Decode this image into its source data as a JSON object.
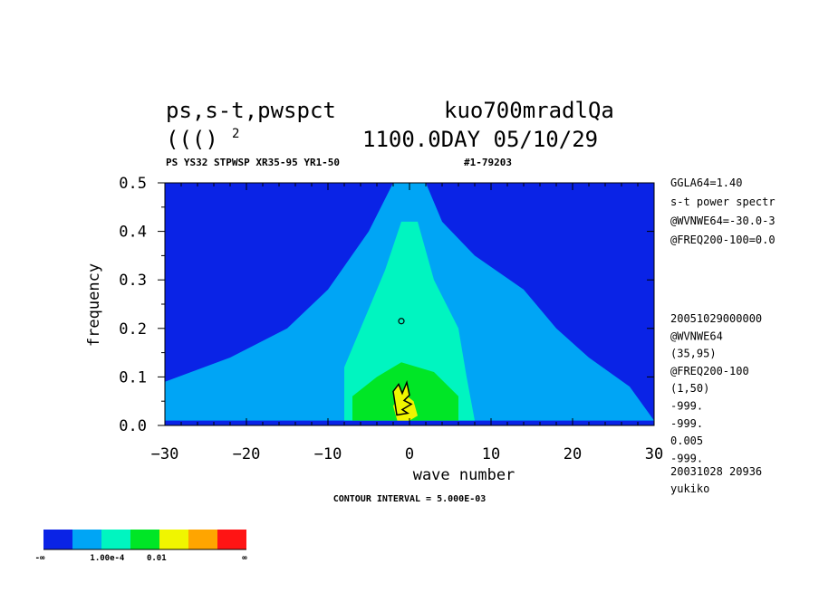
{
  "header": {
    "line1_left": "ps,s-t,pwspct",
    "line1_right": "kuo700mradlQa",
    "line2_left": "((()",
    "line2_sup": "2",
    "line2_right": "1100.0DAY 05/10/29",
    "subtitle_left": "PS YS32 STPWSP XR35-95 YR1-50",
    "subtitle_right": "#1-79203"
  },
  "side_info": {
    "top": [
      "GGLA64=1.40",
      "s-t power spectr",
      "@WVNWE64=-30.0-3",
      "@FREQ200-100=0.0"
    ],
    "bottom": [
      "20051029000000",
      "@WVNWE64",
      "(35,95)",
      "@FREQ200-100",
      "(1,50)",
      "-999.",
      "-999.",
      "0.005",
      "-999."
    ],
    "footer": [
      "20031028  20936",
      "yukiko"
    ]
  },
  "contour_note": "CONTOUR INTERVAL = 5.000E-03",
  "colorbar": {
    "colors": [
      "#0a23e6",
      "#00a5f5",
      "#00f5c0",
      "#00e626",
      "#f0f500",
      "#ffa500",
      "#ff1414"
    ],
    "labels": [
      "-∞",
      "1.00e-4",
      "0.01",
      "∞"
    ]
  },
  "chart_data": {
    "type": "heatmap",
    "xlabel": "wave number",
    "ylabel": "frequency",
    "xlim": [
      -30,
      30
    ],
    "ylim": [
      0,
      0.5
    ],
    "xticks": [
      -30,
      -20,
      -10,
      0,
      10,
      20,
      30
    ],
    "yticks": [
      0.0,
      0.1,
      0.2,
      0.3,
      0.4,
      0.5
    ],
    "xtick_labels": [
      "−30",
      "−20",
      "−10",
      "0",
      "10",
      "20",
      "30"
    ],
    "ytick_labels": [
      "0.0",
      "0.1",
      "0.2",
      "0.3",
      "0.4",
      "0.5"
    ],
    "background_level": "-∞ to 1.00e-4",
    "regions": [
      {
        "level": "1.00e-4 to 0.005",
        "color": "#00a5f5",
        "polygon": [
          [
            -30,
            0.01
          ],
          [
            -30,
            0.09
          ],
          [
            -22,
            0.14
          ],
          [
            -15,
            0.2
          ],
          [
            -10,
            0.28
          ],
          [
            -5,
            0.4
          ],
          [
            -2,
            0.5
          ],
          [
            2,
            0.5
          ],
          [
            4,
            0.42
          ],
          [
            8,
            0.35
          ],
          [
            14,
            0.28
          ],
          [
            18,
            0.2
          ],
          [
            22,
            0.14
          ],
          [
            27,
            0.08
          ],
          [
            30,
            0.01
          ]
        ]
      },
      {
        "level": "0.005 to 0.01",
        "color": "#00f5c0",
        "polygon": [
          [
            -8,
            0.01
          ],
          [
            -8,
            0.12
          ],
          [
            -6,
            0.2
          ],
          [
            -3,
            0.32
          ],
          [
            -1,
            0.42
          ],
          [
            1,
            0.42
          ],
          [
            3,
            0.3
          ],
          [
            6,
            0.2
          ],
          [
            7,
            0.1
          ],
          [
            8,
            0.01
          ]
        ]
      },
      {
        "level": "0.01 to 0.015",
        "color": "#00e626",
        "polygon": [
          [
            -7,
            0.01
          ],
          [
            -7,
            0.06
          ],
          [
            -4,
            0.1
          ],
          [
            -1,
            0.13
          ],
          [
            3,
            0.11
          ],
          [
            6,
            0.06
          ],
          [
            6,
            0.01
          ]
        ]
      },
      {
        "level": "0.015 to 0.02",
        "color": "#f0f500",
        "polygon": [
          [
            -1.5,
            0.01
          ],
          [
            -2,
            0.04
          ],
          [
            -1,
            0.07
          ],
          [
            0.5,
            0.05
          ],
          [
            1,
            0.02
          ],
          [
            0,
            0.01
          ]
        ]
      }
    ]
  }
}
